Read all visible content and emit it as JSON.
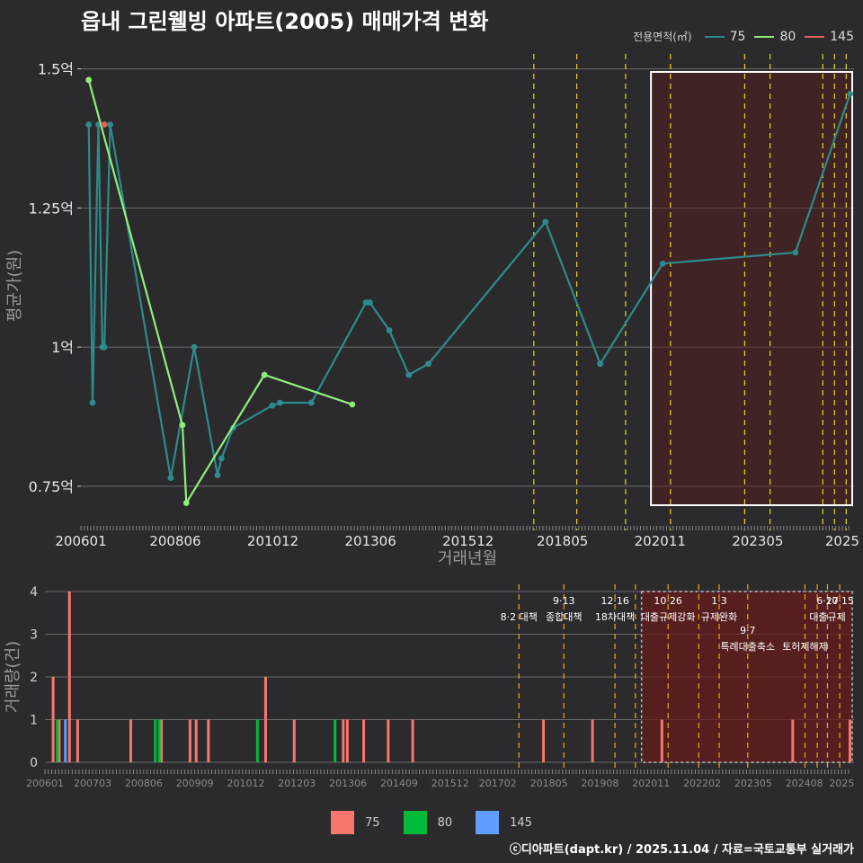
{
  "title": "읍내 그린웰빙 아파트(2005) 매매가격 변화",
  "caption": "ⓒ디아파트(dapt.kr) / 2025.11.04 / 자료=국토교통부 실거래가",
  "legend_top": {
    "title": "전용면적(㎡)",
    "items": [
      {
        "label": "75",
        "color": "#2e8b8b"
      },
      {
        "label": "80",
        "color": "#90ee7a"
      },
      {
        "label": "145",
        "color": "#e06060"
      }
    ]
  },
  "legend_bottom": {
    "items": [
      {
        "label": "75",
        "color": "#f8766d"
      },
      {
        "label": "80",
        "color": "#00ba38"
      },
      {
        "label": "145",
        "color": "#619cff"
      }
    ]
  },
  "chart_data": [
    {
      "type": "line",
      "title": "읍내 그린웰빙 아파트(2005) 매매가격 변화",
      "xlabel": "거래년월",
      "ylabel": "평균가(원)",
      "x_ticks": [
        "200601",
        "200806",
        "201012",
        "201306",
        "201512",
        "201805",
        "202011",
        "202305",
        "2025"
      ],
      "y_ticks": [
        {
          "value": 0.75,
          "label": "0.75억"
        },
        {
          "value": 1.0,
          "label": "1억"
        },
        {
          "value": 1.25,
          "label": "1.25억"
        },
        {
          "value": 1.5,
          "label": "1.5억"
        }
      ],
      "ylim": [
        0.69,
        1.53
      ],
      "xlim": [
        2006.0,
        2025.8
      ],
      "highlight_box": {
        "x_start": 2020.6,
        "x_end": 2025.8
      },
      "policy_lines": [
        2017.6,
        2018.7,
        2019.95,
        2021.1,
        2023.0,
        2023.65,
        2025.0,
        2025.3,
        2025.6
      ],
      "series": [
        {
          "name": "75",
          "color": "#2e8b8b",
          "points": [
            [
              2006.2,
              1.4
            ],
            [
              2006.3,
              0.9
            ],
            [
              2006.45,
              1.4
            ],
            [
              2006.55,
              1.0
            ],
            [
              2006.6,
              1.0
            ],
            [
              2006.75,
              1.4
            ],
            [
              2008.3,
              0.765
            ],
            [
              2008.9,
              1.0
            ],
            [
              2009.5,
              0.77
            ],
            [
              2009.6,
              0.8
            ],
            [
              2009.9,
              0.855
            ],
            [
              2010.9,
              0.895
            ],
            [
              2011.1,
              0.9
            ],
            [
              2011.9,
              0.9
            ],
            [
              2013.3,
              1.08
            ],
            [
              2013.4,
              1.08
            ],
            [
              2013.9,
              1.03
            ],
            [
              2014.4,
              0.95
            ],
            [
              2014.9,
              0.97
            ],
            [
              2017.9,
              1.225
            ],
            [
              2019.3,
              0.97
            ],
            [
              2020.9,
              1.15
            ],
            [
              2024.3,
              1.17
            ],
            [
              2025.7,
              1.455
            ]
          ]
        },
        {
          "name": "80",
          "color": "#90ee7a",
          "points": [
            [
              2006.2,
              1.48
            ],
            [
              2008.6,
              0.86
            ],
            [
              2008.7,
              0.72
            ],
            [
              2010.7,
              0.95
            ],
            [
              2012.95,
              0.897
            ]
          ]
        },
        {
          "name": "145",
          "color": "#e06060",
          "points": [
            [
              2006.6,
              1.4
            ]
          ]
        }
      ]
    },
    {
      "type": "bar",
      "ylabel": "거래량(건)",
      "ylim": [
        0,
        4
      ],
      "y_ticks": [
        0,
        1,
        2,
        3,
        4
      ],
      "x_ticks": [
        "200601",
        "200703",
        "200806",
        "200909",
        "201012",
        "201203",
        "201306",
        "201409",
        "201512",
        "201702",
        "201805",
        "201908",
        "202011",
        "202202",
        "202305",
        "202408",
        "2025"
      ],
      "xlim": [
        2006.0,
        2025.8
      ],
      "highlight_box": {
        "x_start": 2020.6,
        "x_end": 2025.8
      },
      "policy_lines": [
        2017.6,
        2018.7,
        2019.95,
        2020.45,
        2021.25,
        2022.0,
        2022.5,
        2023.2,
        2024.6,
        2024.9,
        2025.15,
        2025.45
      ],
      "annotations": [
        {
          "x": 2017.6,
          "line1": "",
          "line2": "8·2 대책",
          "row": 1
        },
        {
          "x": 2018.7,
          "line1": "9·13",
          "line2": "종합대책",
          "row": 1
        },
        {
          "x": 2019.95,
          "line1": "12·16",
          "line2": "18차대책",
          "row": 1
        },
        {
          "x": 2021.25,
          "line1": "10·26",
          "line2": "대출규제강화",
          "row": 1
        },
        {
          "x": 2022.5,
          "line1": "1·3",
          "line2": "규제완화",
          "row": 1
        },
        {
          "x": 2023.2,
          "line1": "9·7",
          "line2": "특례대출축소",
          "row": 2
        },
        {
          "x": 2024.6,
          "line1": "",
          "line2": "토허제해제",
          "row": 2
        },
        {
          "x": 2025.15,
          "line1": "6·27",
          "line2": "대출규제",
          "row": 1
        },
        {
          "x": 2025.45,
          "line1": "10·15",
          "line2": "",
          "row": 1
        }
      ],
      "series": [
        {
          "name": "75",
          "color": "#f8766d",
          "bars": [
            [
              2006.2,
              2
            ],
            [
              2006.35,
              1
            ],
            [
              2006.6,
              4
            ],
            [
              2006.8,
              1
            ],
            [
              2008.1,
              1
            ],
            [
              2008.85,
              1
            ],
            [
              2009.55,
              1
            ],
            [
              2009.7,
              1
            ],
            [
              2010.0,
              1
            ],
            [
              2011.4,
              2
            ],
            [
              2012.1,
              1
            ],
            [
              2013.3,
              1
            ],
            [
              2013.4,
              1
            ],
            [
              2013.8,
              1
            ],
            [
              2014.4,
              1
            ],
            [
              2015.0,
              1
            ],
            [
              2018.2,
              1
            ],
            [
              2019.4,
              1
            ],
            [
              2021.1,
              1
            ],
            [
              2024.3,
              1
            ],
            [
              2025.7,
              1
            ]
          ]
        },
        {
          "name": "80",
          "color": "#00ba38",
          "bars": [
            [
              2006.3,
              1
            ],
            [
              2008.7,
              1
            ],
            [
              2008.8,
              1
            ],
            [
              2011.2,
              1
            ],
            [
              2013.1,
              1
            ]
          ]
        },
        {
          "name": "145",
          "color": "#619cff",
          "bars": [
            [
              2006.5,
              1
            ]
          ]
        }
      ]
    }
  ]
}
